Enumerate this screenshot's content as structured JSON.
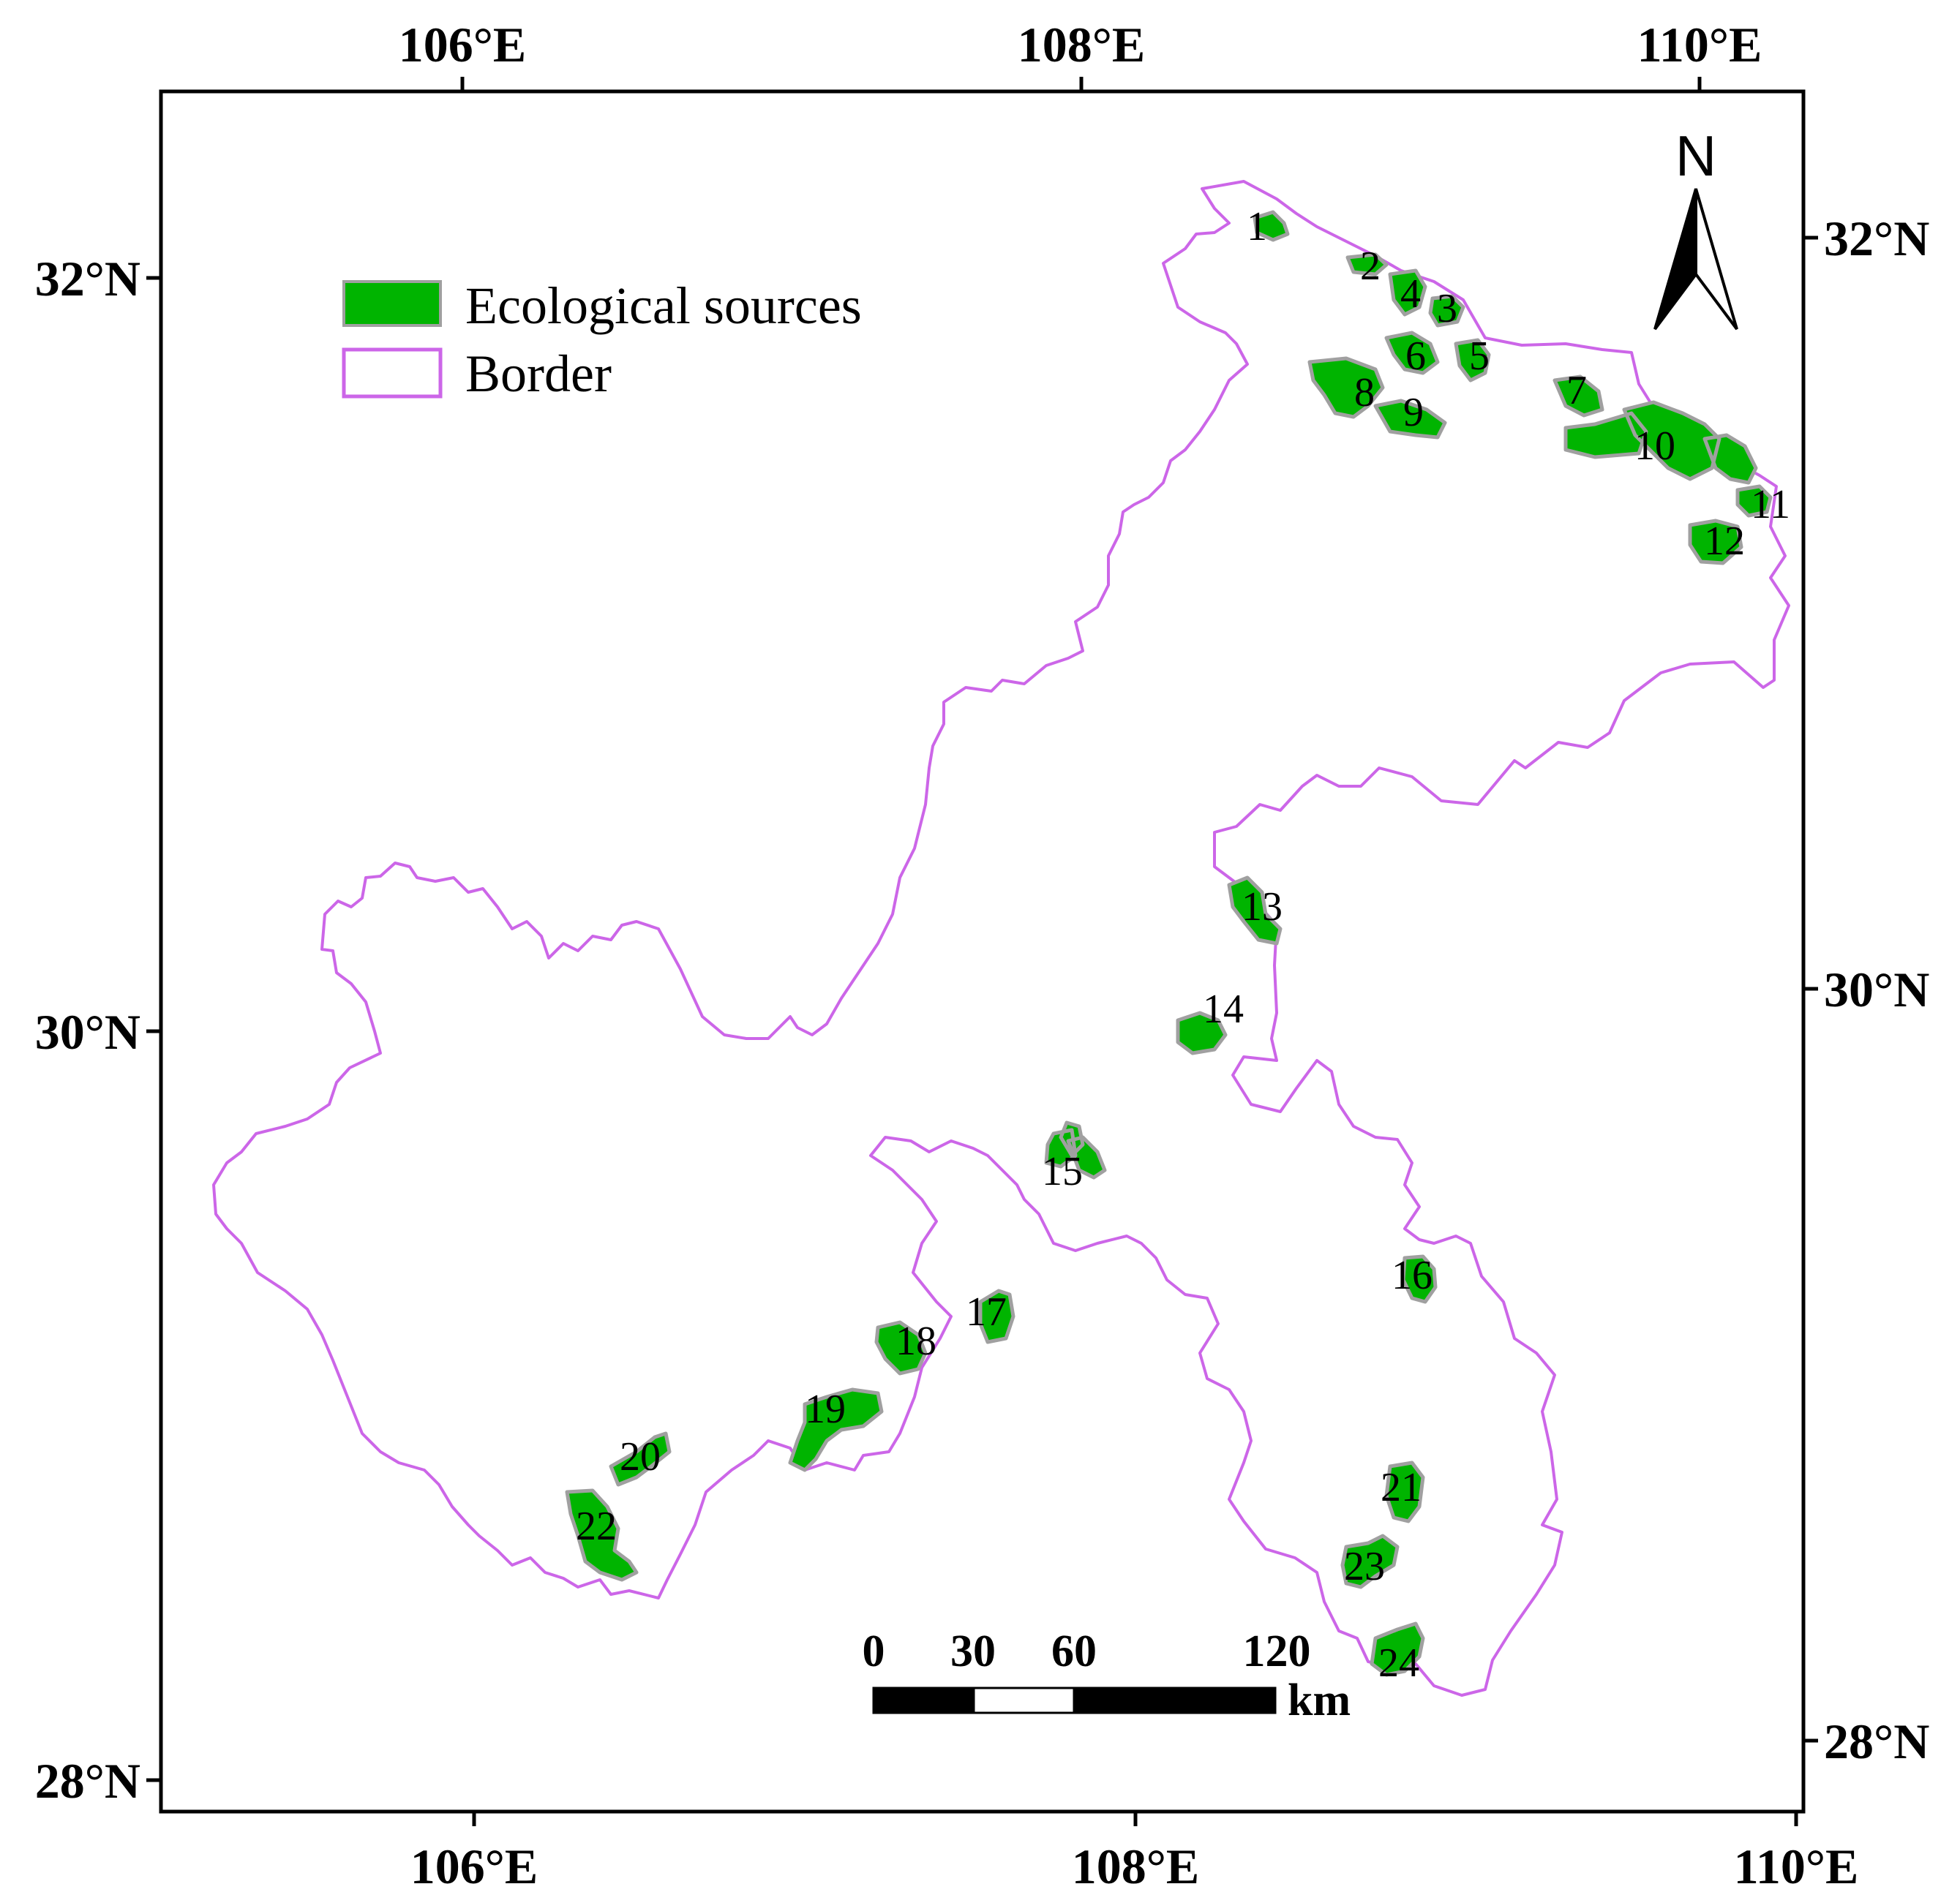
{
  "colors": {
    "ecological_source": "#00b400",
    "source_outline": "#a0a0a0",
    "border": "#cc66e8",
    "frame": "#000000",
    "background": "#ffffff"
  },
  "axes": {
    "top_longitude_ticks": [
      "106°E",
      "108°E",
      "110°E"
    ],
    "bottom_longitude_ticks": [
      "106°E",
      "108°E",
      "110°E"
    ],
    "left_latitude_ticks": [
      "32°N",
      "30°N",
      "28°N"
    ],
    "right_latitude_ticks": [
      "32°N",
      "30°N",
      "28°N"
    ]
  },
  "legend": {
    "items": [
      {
        "label": "Ecological sources",
        "swatch": "fill"
      },
      {
        "label": "Border",
        "swatch": "outline"
      }
    ]
  },
  "north_arrow": {
    "label": "N",
    "icon": "north-arrow-icon"
  },
  "scale_bar": {
    "ticks": [
      "0",
      "30",
      "60",
      "120"
    ],
    "unit": "km",
    "pattern": [
      "black",
      "white",
      "black"
    ]
  },
  "ecological_sources": [
    {
      "id": "1"
    },
    {
      "id": "2"
    },
    {
      "id": "3"
    },
    {
      "id": "4"
    },
    {
      "id": "5"
    },
    {
      "id": "6"
    },
    {
      "id": "7"
    },
    {
      "id": "8"
    },
    {
      "id": "9"
    },
    {
      "id": "10"
    },
    {
      "id": "11"
    },
    {
      "id": "12"
    },
    {
      "id": "13"
    },
    {
      "id": "14"
    },
    {
      "id": "15"
    },
    {
      "id": "16"
    },
    {
      "id": "17"
    },
    {
      "id": "18"
    },
    {
      "id": "19"
    },
    {
      "id": "20"
    },
    {
      "id": "21"
    },
    {
      "id": "22"
    },
    {
      "id": "23"
    },
    {
      "id": "24"
    }
  ]
}
